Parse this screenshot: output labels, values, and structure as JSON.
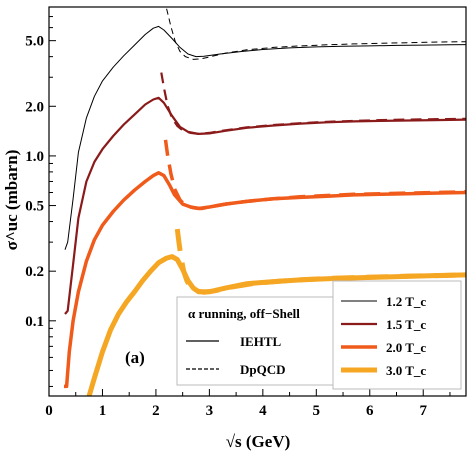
{
  "chart_data": {
    "type": "line",
    "xlabel": "√s (GeV)",
    "ylabel": "σ^uc (mbarn)",
    "xlim": [
      0,
      7.8
    ],
    "ylim": [
      0.035,
      8.0
    ],
    "y_scale": "log",
    "x_ticks": [
      0,
      1,
      2,
      3,
      4,
      5,
      6,
      7
    ],
    "y_ticks": [
      0.1,
      0.2,
      0.5,
      1.0,
      2.0,
      5.0
    ],
    "y_tick_labels": [
      "0.1",
      "0.2",
      "0.5",
      "1.0",
      "2.0",
      "5.0"
    ],
    "annotation": "(a)",
    "grid": false,
    "legends": {
      "styles": {
        "title": "α running, off−Shell",
        "entries": [
          "IEHTL",
          "DpQCD"
        ],
        "placement": "bottom-center"
      },
      "temperatures": {
        "entries": [
          "1.2 T_c",
          "1.5 T_c",
          "2.0 T_c",
          "3.0 T_c"
        ],
        "placement": "bottom-right"
      }
    },
    "series": [
      {
        "name": "1.2 T_c",
        "model": "IEHTL",
        "color": "#000000",
        "width": 1,
        "x": [
          0.3,
          0.35,
          0.45,
          0.55,
          0.7,
          0.85,
          1.0,
          1.2,
          1.4,
          1.6,
          1.8,
          1.95,
          2.05,
          2.15,
          2.3,
          2.45,
          2.6,
          2.75,
          2.9,
          3.2,
          3.6,
          4.0,
          4.5,
          5.0,
          5.5,
          6.0,
          6.5,
          7.0,
          7.5,
          7.8
        ],
        "y": [
          0.27,
          0.3,
          0.55,
          1.05,
          1.7,
          2.3,
          2.85,
          3.45,
          4.05,
          4.7,
          5.45,
          5.95,
          6.1,
          5.8,
          5.15,
          4.55,
          4.15,
          4.0,
          4.02,
          4.15,
          4.3,
          4.42,
          4.52,
          4.58,
          4.62,
          4.65,
          4.68,
          4.7,
          4.72,
          4.73
        ]
      },
      {
        "name": "1.2 T_c",
        "model": "DpQCD",
        "color": "#000000",
        "width": 1,
        "dashed": true,
        "x": [
          2.2,
          2.28,
          2.36,
          2.45,
          2.55,
          2.7,
          2.85,
          3.0,
          3.3,
          3.7,
          4.2,
          4.7,
          5.2,
          5.7,
          6.2,
          6.7,
          7.2,
          7.8
        ],
        "y": [
          7.8,
          6.1,
          4.95,
          4.3,
          4.0,
          3.85,
          3.88,
          3.98,
          4.2,
          4.4,
          4.55,
          4.65,
          4.72,
          4.78,
          4.82,
          4.86,
          4.9,
          4.93
        ]
      },
      {
        "name": "1.5 T_c",
        "model": "IEHTL",
        "color": "#8b1a1a",
        "width": 2.2,
        "x": [
          0.3,
          0.35,
          0.45,
          0.55,
          0.7,
          0.85,
          1.0,
          1.2,
          1.4,
          1.6,
          1.8,
          1.95,
          2.05,
          2.15,
          2.3,
          2.45,
          2.6,
          2.8,
          3.0,
          3.3,
          3.7,
          4.2,
          4.7,
          5.2,
          5.7,
          6.2,
          6.7,
          7.2,
          7.8
        ],
        "y": [
          0.11,
          0.115,
          0.22,
          0.42,
          0.7,
          0.92,
          1.1,
          1.32,
          1.55,
          1.78,
          2.05,
          2.2,
          2.25,
          2.1,
          1.75,
          1.5,
          1.4,
          1.36,
          1.37,
          1.42,
          1.48,
          1.53,
          1.57,
          1.6,
          1.62,
          1.63,
          1.64,
          1.65,
          1.66
        ]
      },
      {
        "name": "1.5 T_c",
        "model": "DpQCD",
        "color": "#8b1a1a",
        "width": 2.2,
        "dashed": true,
        "x": [
          2.1,
          2.15,
          2.22,
          2.3,
          2.4,
          2.5,
          2.65,
          2.8,
          3.0,
          3.3,
          3.7,
          4.2,
          4.7,
          5.2,
          5.7,
          6.2,
          6.7,
          7.2,
          7.8
        ],
        "y": [
          3.2,
          2.6,
          2.0,
          1.7,
          1.52,
          1.43,
          1.38,
          1.36,
          1.38,
          1.43,
          1.49,
          1.54,
          1.58,
          1.61,
          1.63,
          1.65,
          1.66,
          1.67,
          1.68
        ]
      },
      {
        "name": "2.0 T_c",
        "model": "IEHTL",
        "color": "#f05a1a",
        "width": 3.5,
        "x": [
          0.28,
          0.33,
          0.38,
          0.45,
          0.55,
          0.7,
          0.85,
          1.0,
          1.2,
          1.4,
          1.6,
          1.8,
          1.95,
          2.05,
          2.15,
          2.25,
          2.35,
          2.5,
          2.65,
          2.8,
          3.0,
          3.3,
          3.7,
          4.2,
          4.7,
          5.2,
          5.7,
          6.2,
          6.7,
          7.2,
          7.8
        ],
        "y": [
          0.04,
          0.04,
          0.065,
          0.1,
          0.15,
          0.23,
          0.31,
          0.38,
          0.46,
          0.54,
          0.62,
          0.7,
          0.76,
          0.79,
          0.76,
          0.67,
          0.58,
          0.51,
          0.49,
          0.48,
          0.49,
          0.51,
          0.53,
          0.55,
          0.56,
          0.57,
          0.58,
          0.585,
          0.59,
          0.595,
          0.6
        ]
      },
      {
        "name": "2.0 T_c",
        "model": "DpQCD",
        "color": "#f05a1a",
        "width": 3.5,
        "dashed": true,
        "x": [
          2.18,
          2.22,
          2.28,
          2.35,
          2.45,
          2.55,
          2.7,
          2.85,
          3.0,
          3.3,
          3.7,
          4.2,
          4.7,
          5.2,
          5.7,
          6.2,
          6.7,
          7.2,
          7.8
        ],
        "y": [
          1.25,
          1.0,
          0.78,
          0.63,
          0.54,
          0.5,
          0.485,
          0.48,
          0.49,
          0.51,
          0.53,
          0.55,
          0.565,
          0.575,
          0.585,
          0.59,
          0.595,
          0.6,
          0.605
        ]
      },
      {
        "name": "3.0 T_c",
        "model": "IEHTL",
        "color": "#f5a623",
        "width": 5,
        "x": [
          0.75,
          0.85,
          1.0,
          1.15,
          1.3,
          1.45,
          1.6,
          1.75,
          1.9,
          2.05,
          2.2,
          2.3,
          2.4,
          2.5,
          2.6,
          2.7,
          2.8,
          3.0,
          3.3,
          3.7,
          4.2,
          4.7,
          5.2,
          5.7,
          6.2,
          6.7,
          7.2,
          7.8
        ],
        "y": [
          0.035,
          0.045,
          0.065,
          0.088,
          0.11,
          0.13,
          0.15,
          0.175,
          0.2,
          0.225,
          0.24,
          0.245,
          0.235,
          0.205,
          0.175,
          0.158,
          0.15,
          0.15,
          0.158,
          0.168,
          0.173,
          0.177,
          0.18,
          0.182,
          0.184,
          0.186,
          0.188,
          0.19
        ]
      },
      {
        "name": "3.0 T_c",
        "model": "DpQCD",
        "color": "#f5a623",
        "width": 5,
        "dashed": true,
        "x": [
          2.4,
          2.43,
          2.47,
          2.52,
          2.58,
          2.65,
          2.75,
          2.9,
          3.1,
          3.4,
          3.8,
          4.3,
          4.8,
          5.3,
          5.8,
          6.3,
          6.8,
          7.3,
          7.8
        ],
        "y": [
          0.36,
          0.3,
          0.24,
          0.2,
          0.175,
          0.16,
          0.152,
          0.149,
          0.152,
          0.16,
          0.168,
          0.174,
          0.178,
          0.181,
          0.183,
          0.185,
          0.187,
          0.188,
          0.19
        ]
      }
    ]
  }
}
